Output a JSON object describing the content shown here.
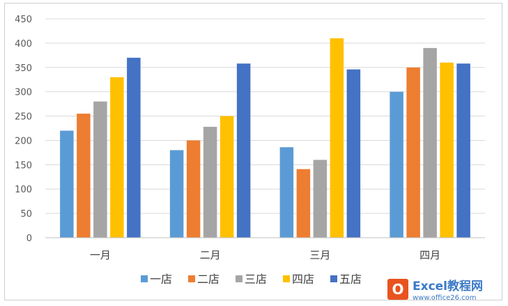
{
  "chart_data": {
    "type": "bar",
    "categories": [
      "一月",
      "二月",
      "三月",
      "四月"
    ],
    "series": [
      {
        "name": "一店",
        "color": "#5b9bd5",
        "values": [
          220,
          180,
          186,
          300
        ]
      },
      {
        "name": "二店",
        "color": "#ed7d31",
        "values": [
          255,
          200,
          141,
          350
        ]
      },
      {
        "name": "三店",
        "color": "#a5a5a5",
        "values": [
          280,
          228,
          160,
          390
        ]
      },
      {
        "name": "四店",
        "color": "#ffc000",
        "values": [
          330,
          250,
          410,
          360
        ]
      },
      {
        "name": "五店",
        "color": "#4472c4",
        "values": [
          370,
          358,
          346,
          358
        ]
      }
    ],
    "ylim": [
      0,
      450
    ],
    "yticks": [
      0,
      50,
      100,
      150,
      200,
      250,
      300,
      350,
      400,
      450
    ],
    "grid": true,
    "legend": "bottom"
  },
  "watermark": {
    "text": "Excel教程网",
    "url": "www.office26.com",
    "logo_letter": "O"
  }
}
